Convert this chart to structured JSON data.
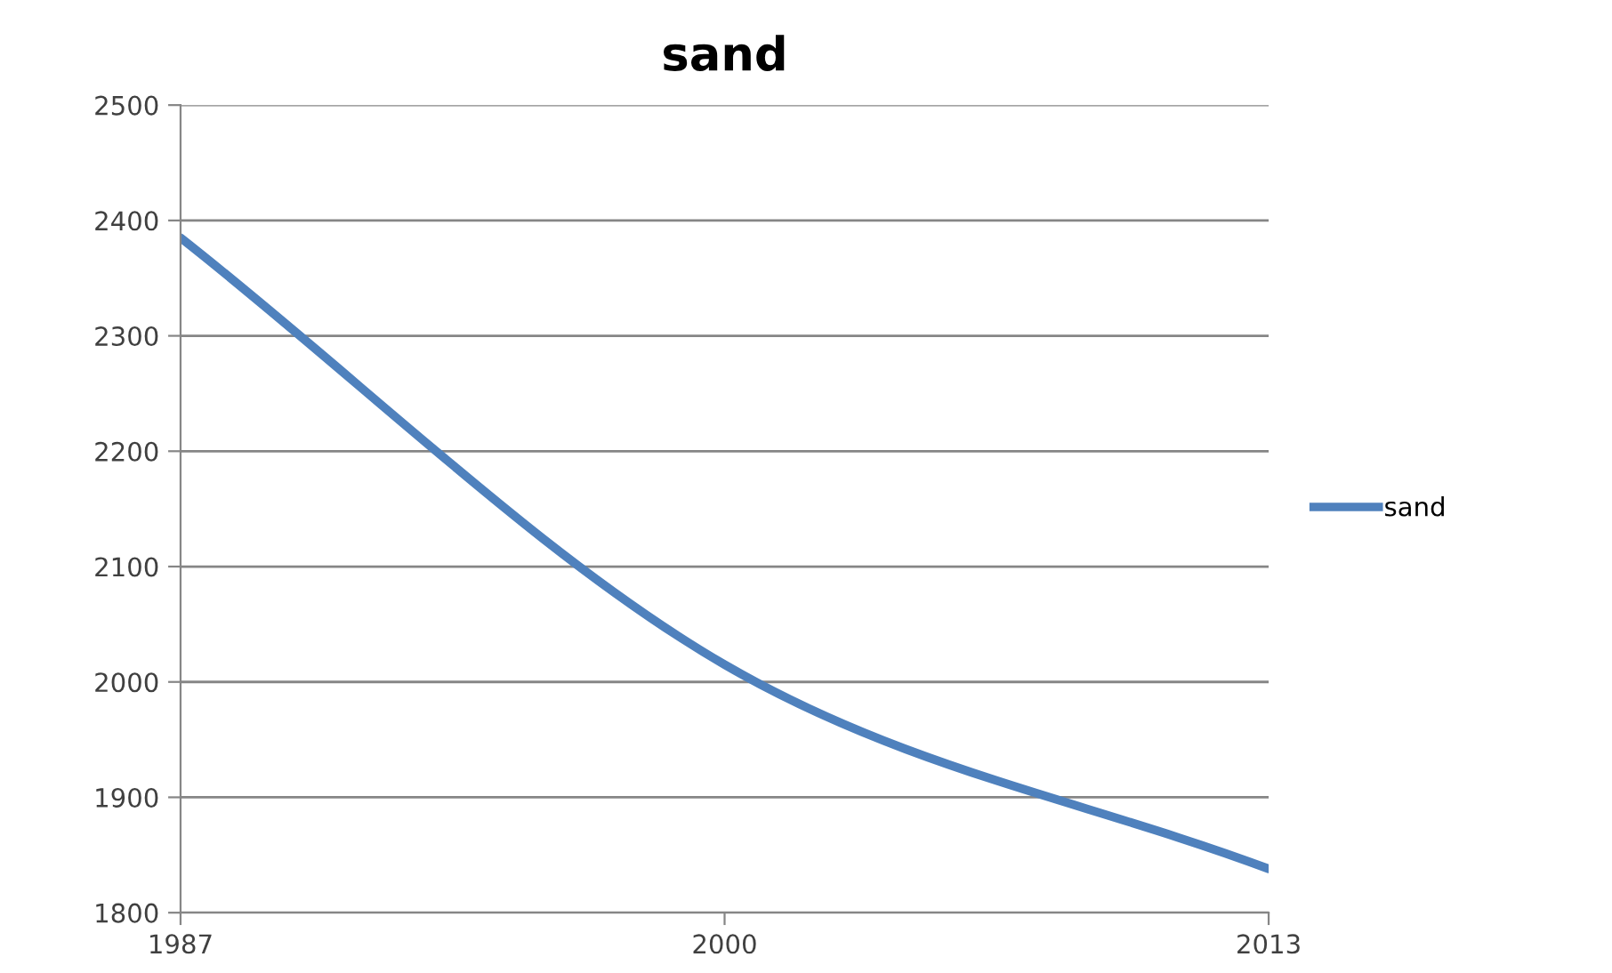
{
  "chart_data": {
    "type": "line",
    "title": "sand",
    "categories": [
      "1987",
      "2000",
      "2013"
    ],
    "series": [
      {
        "name": "sand",
        "color": "#4f81bd",
        "values": [
          2385,
          2015,
          1838
        ]
      }
    ],
    "ylim": [
      1800,
      2500
    ],
    "yticks": [
      1800,
      1900,
      2000,
      2100,
      2200,
      2300,
      2400,
      2500
    ],
    "grid": "y",
    "legend": "right",
    "marker": "none",
    "line_style": "solid"
  }
}
